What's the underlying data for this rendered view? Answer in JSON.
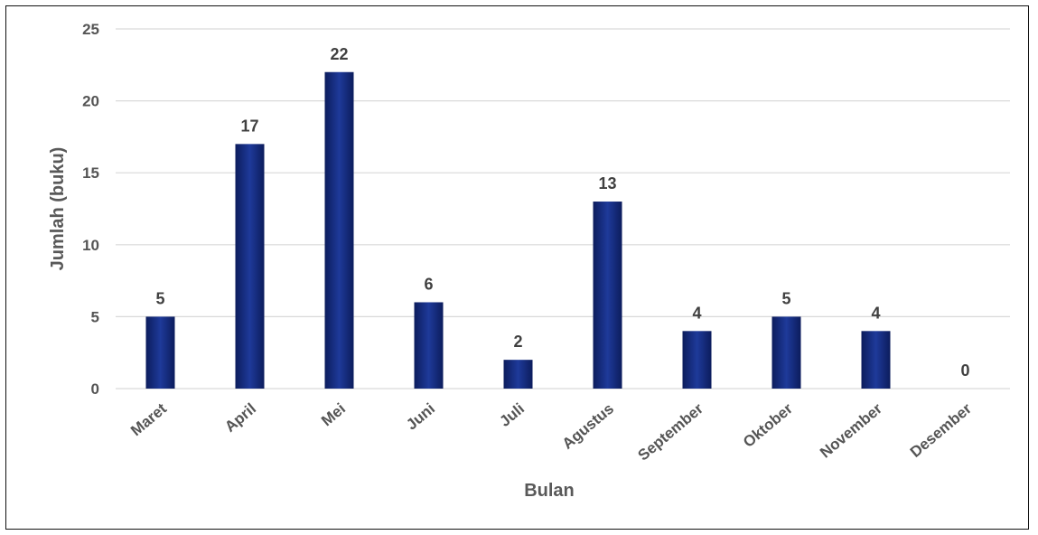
{
  "chart_data": {
    "type": "bar",
    "categories": [
      "Maret",
      "April",
      "Mei",
      "Juni",
      "Juli",
      "Agustus",
      "September",
      "Oktober",
      "November",
      "Desember"
    ],
    "values": [
      5,
      17,
      22,
      6,
      2,
      13,
      4,
      5,
      4,
      0
    ],
    "data_labels": [
      "5",
      "17",
      "22",
      "6",
      "2",
      "13",
      "4",
      "5",
      "4",
      "0"
    ],
    "title": "",
    "xlabel": "Bulan",
    "ylabel": "Jumlah (buku)",
    "ylim": [
      0,
      25
    ],
    "yticks": [
      0,
      5,
      10,
      15,
      20,
      25
    ],
    "ytick_labels": [
      "0",
      "5",
      "10",
      "15",
      "20",
      "25"
    ],
    "grid": true,
    "legend": "none",
    "colors": {
      "bar_dark": "#0c1c5c",
      "bar_mid": "#1e3a9a",
      "grid": "#d9d9d9"
    }
  }
}
